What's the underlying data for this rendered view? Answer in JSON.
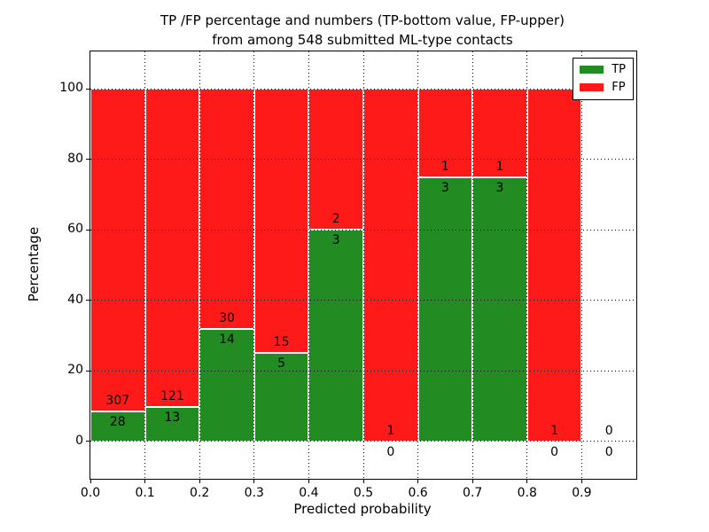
{
  "chart_data": {
    "type": "bar",
    "stacked": true,
    "title": "TP /FP percentage and numbers (TP-bottom value, FP-upper)",
    "subtitle": "from among 548 submitted ML-type contacts",
    "xlabel": "Predicted probability",
    "ylabel": "Percentage",
    "total_contacts": 548,
    "xlim": [
      0.0,
      1.0
    ],
    "ylim": [
      -10.7,
      110.7
    ],
    "grid": true,
    "xticks": [
      {
        "value": 0.0,
        "label": "0.0"
      },
      {
        "value": 0.1,
        "label": "0.1"
      },
      {
        "value": 0.2,
        "label": "0.2"
      },
      {
        "value": 0.3,
        "label": "0.3"
      },
      {
        "value": 0.4,
        "label": "0.4"
      },
      {
        "value": 0.5,
        "label": "0.5"
      },
      {
        "value": 0.6,
        "label": "0.6"
      },
      {
        "value": 0.7,
        "label": "0.7"
      },
      {
        "value": 0.8,
        "label": "0.8"
      },
      {
        "value": 0.9,
        "label": "0.9"
      }
    ],
    "yticks": [
      {
        "value": 0,
        "label": "0"
      },
      {
        "value": 20,
        "label": "20"
      },
      {
        "value": 40,
        "label": "40"
      },
      {
        "value": 60,
        "label": "60"
      },
      {
        "value": 80,
        "label": "80"
      },
      {
        "value": 100,
        "label": "100"
      }
    ],
    "bins": [
      {
        "x0": 0.0,
        "x1": 0.1,
        "tp": 28,
        "fp": 307
      },
      {
        "x0": 0.1,
        "x1": 0.2,
        "tp": 13,
        "fp": 121
      },
      {
        "x0": 0.2,
        "x1": 0.3,
        "tp": 14,
        "fp": 30
      },
      {
        "x0": 0.3,
        "x1": 0.4,
        "tp": 5,
        "fp": 15
      },
      {
        "x0": 0.4,
        "x1": 0.5,
        "tp": 3,
        "fp": 2
      },
      {
        "x0": 0.5,
        "x1": 0.6,
        "tp": 0,
        "fp": 1
      },
      {
        "x0": 0.6,
        "x1": 0.7,
        "tp": 3,
        "fp": 1
      },
      {
        "x0": 0.7,
        "x1": 0.8,
        "tp": 3,
        "fp": 1
      },
      {
        "x0": 0.8,
        "x1": 0.9,
        "tp": 0,
        "fp": 1
      },
      {
        "x0": 0.9,
        "x1": 1.0,
        "tp": 0,
        "fp": 0
      }
    ],
    "colors": {
      "tp": "#228b22",
      "fp": "#ff1a1a",
      "grid": "#000000",
      "text": "#000000",
      "bar_edge": "#ffffff"
    },
    "legend": {
      "position": "upper-right",
      "entries": [
        {
          "label": "TP",
          "color": "#228b22"
        },
        {
          "label": "FP",
          "color": "#ff1a1a"
        }
      ]
    }
  }
}
